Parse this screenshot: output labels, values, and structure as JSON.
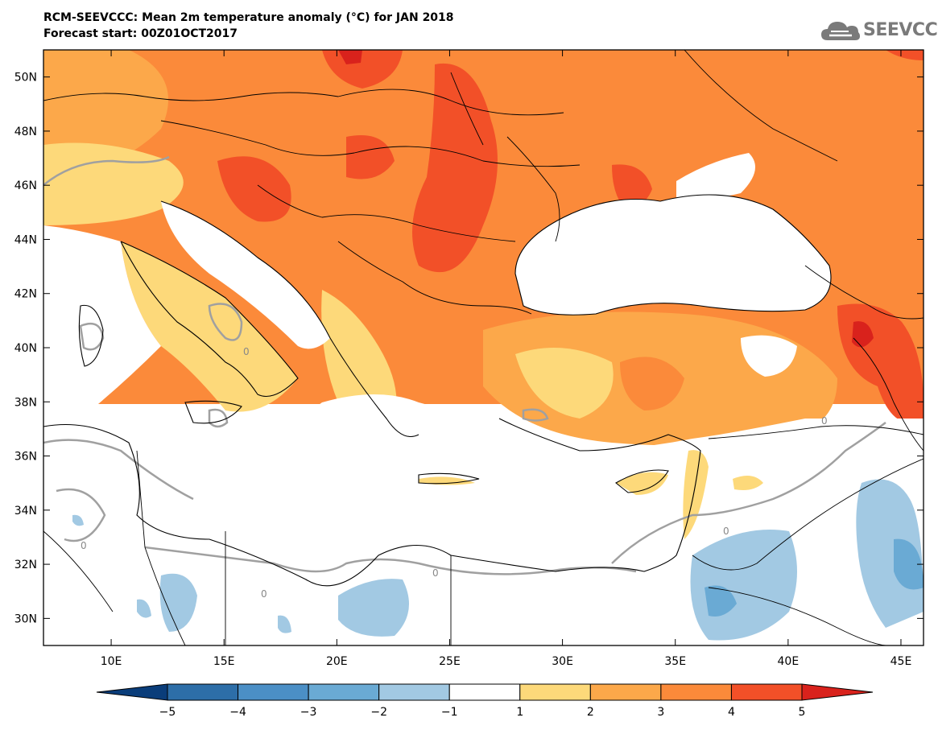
{
  "title": {
    "line1": "RCM-SEEVCCC: Mean 2m temperature anomaly (°C) for JAN 2018",
    "line2": "Forecast start: 00Z01OCT2017"
  },
  "logo": {
    "text": "SEEVCCC",
    "icon": "cloud-icon"
  },
  "axes": {
    "x": {
      "range": [
        7,
        46
      ],
      "ticks": [
        10,
        15,
        20,
        25,
        30,
        35,
        40,
        45
      ],
      "tick_labels": [
        "10E",
        "15E",
        "20E",
        "25E",
        "30E",
        "35E",
        "40E",
        "45E"
      ]
    },
    "y": {
      "range": [
        29,
        51
      ],
      "ticks": [
        30,
        32,
        34,
        36,
        38,
        40,
        42,
        44,
        46,
        48,
        50
      ],
      "tick_labels": [
        "30N",
        "32N",
        "34N",
        "36N",
        "38N",
        "40N",
        "42N",
        "44N",
        "46N",
        "48N",
        "50N"
      ]
    }
  },
  "colorbar": {
    "levels": [
      -5,
      -4,
      -3,
      -2,
      -1,
      1,
      2,
      3,
      4,
      5
    ],
    "labels": [
      "−5",
      "−4",
      "−3",
      "−2",
      "−1",
      "1",
      "2",
      "3",
      "4",
      "5"
    ],
    "colors": [
      "#0a3d7a",
      "#2d6ea8",
      "#4b8fc6",
      "#6aaad4",
      "#a2c9e3",
      "#ffffff",
      "#fdd97a",
      "#fca84a",
      "#fb8a3a",
      "#f25028",
      "#d9221c"
    ]
  },
  "map": {
    "contour_label": "0",
    "colors": {
      "sea": "#ffffff",
      "anom_1_2": "#fdd97a",
      "anom_2_3": "#fca84a",
      "anom_3_4": "#fb8a3a",
      "anom_4_5": "#f25028",
      "anom_gt5": "#d9221c",
      "anom_m1_m2": "#a2c9e3",
      "anom_m2_m3": "#6aaad4",
      "zero_contour": "#a0a0a0",
      "border": "#000000"
    }
  }
}
